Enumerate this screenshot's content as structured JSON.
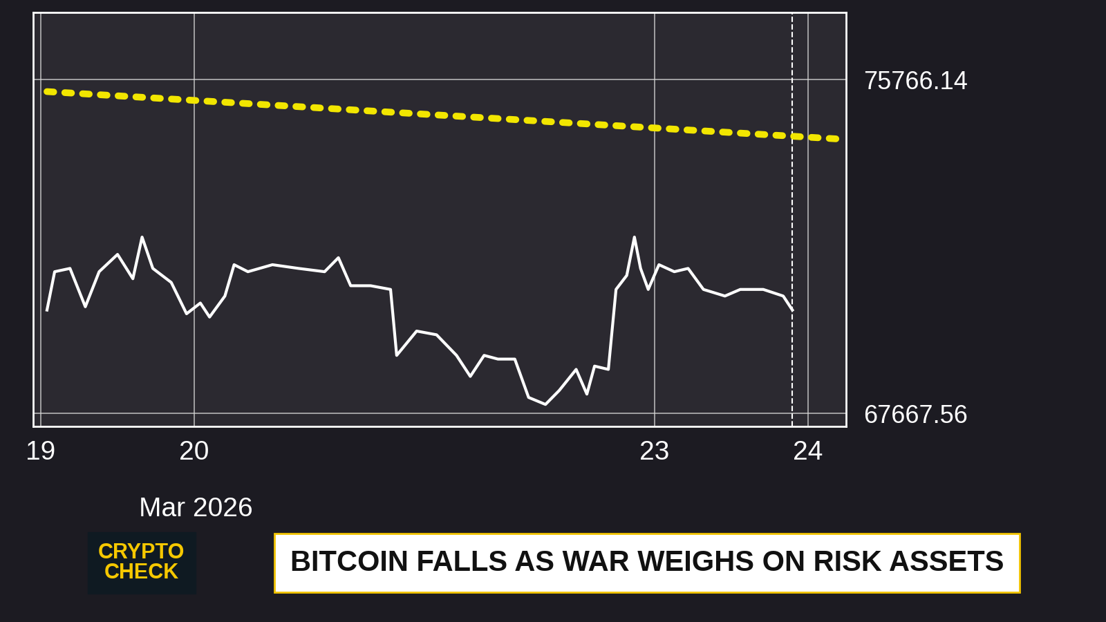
{
  "chart_data": {
    "type": "line",
    "title": "BITCOIN FALLS AS WAR WEIGHS ON RISK ASSETS",
    "annotations": [
      "CRYPTO CHECK"
    ],
    "x_label": "Mar 2026",
    "x": [
      19.54,
      19.59,
      19.69,
      19.79,
      19.88,
      20.0,
      20.1,
      20.16,
      20.23,
      20.35,
      20.45,
      20.54,
      20.6,
      20.7,
      20.76,
      20.85,
      21.01,
      21.18,
      21.35,
      21.44,
      21.52,
      21.65,
      21.78,
      21.82,
      21.95,
      22.08,
      22.21,
      22.3,
      22.39,
      22.48,
      22.59,
      22.68,
      22.79,
      22.88,
      22.99,
      23.06,
      23.11,
      23.2,
      23.25,
      23.32,
      23.37,
      23.41,
      23.46,
      23.53,
      23.63,
      23.72,
      23.82,
      23.96,
      24.06,
      24.21,
      24.34,
      24.4
    ],
    "series": [
      {
        "color": "#ffffff",
        "line_style": "solid",
        "values": [
          70180,
          71110,
          71190,
          70260,
          71110,
          71530,
          70940,
          71950,
          71190,
          70850,
          70090,
          70350,
          70010,
          70520,
          71280,
          71110,
          71280,
          71190,
          71110,
          71450,
          70770,
          70770,
          70680,
          69080,
          69670,
          69580,
          69080,
          68570,
          69080,
          68990,
          68990,
          68060,
          67890,
          68230,
          68740,
          68140,
          68820,
          68740,
          70680,
          71020,
          71950,
          71190,
          70680,
          71280,
          71110,
          71190,
          70680,
          70520,
          70680,
          70680,
          70520,
          70180
        ]
      },
      {
        "color": "#f2e600",
        "line_style": "dotted",
        "x": [
          19.54,
          24.7
        ],
        "values": [
          75480,
          74330
        ]
      }
    ],
    "xlim": [
      19.45,
      24.75
    ],
    "xticks": [
      {
        "value": 19.5,
        "label": "19"
      },
      {
        "value": 20.5,
        "label": "20"
      },
      {
        "value": 23.5,
        "label": "23"
      },
      {
        "value": 24.5,
        "label": "24"
      }
    ],
    "ylim": [
      67350,
      77400
    ],
    "yticks": [
      75766.14,
      67667.56
    ],
    "grid": true
  }
}
